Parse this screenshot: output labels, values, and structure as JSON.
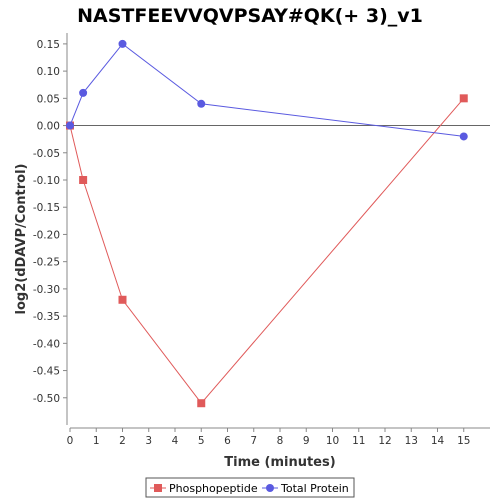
{
  "chart_data": {
    "type": "line",
    "title": "NASTFEEVVQVPSAY#QK(+ 3)_v1",
    "xlabel": "Time (minutes)",
    "ylabel": "log2(dDAVP/Control)",
    "xlim": [
      0,
      16
    ],
    "ylim": [
      -0.55,
      0.17
    ],
    "xticks": [
      0,
      1,
      2,
      3,
      4,
      5,
      6,
      7,
      8,
      9,
      10,
      11,
      12,
      13,
      14,
      15
    ],
    "yticks": [
      0.15,
      0.1,
      0.05,
      0.0,
      -0.05,
      -0.1,
      -0.15,
      -0.2,
      -0.25,
      -0.3,
      -0.35,
      -0.4,
      -0.45,
      -0.5
    ],
    "ytick_labels": [
      "0.15",
      "0.10",
      "0.05",
      "0.00",
      "-0.05",
      "-0.10",
      "-0.15",
      "-0.20",
      "-0.25",
      "-0.30",
      "-0.35",
      "-0.40",
      "-0.45",
      "-0.50"
    ],
    "zero_line": true,
    "grid": false,
    "legend_position": "bottom",
    "series": [
      {
        "name": "Phosphopeptide",
        "color": "#e05a5a",
        "marker": "square",
        "x": [
          0,
          0.5,
          2,
          5,
          15
        ],
        "y": [
          0.0,
          -0.1,
          -0.32,
          -0.51,
          0.05
        ]
      },
      {
        "name": "Total Protein",
        "color": "#5a5ae0",
        "marker": "circle",
        "x": [
          0,
          0.5,
          2,
          5,
          15
        ],
        "y": [
          0.0,
          0.06,
          0.15,
          0.04,
          -0.02
        ]
      }
    ]
  }
}
